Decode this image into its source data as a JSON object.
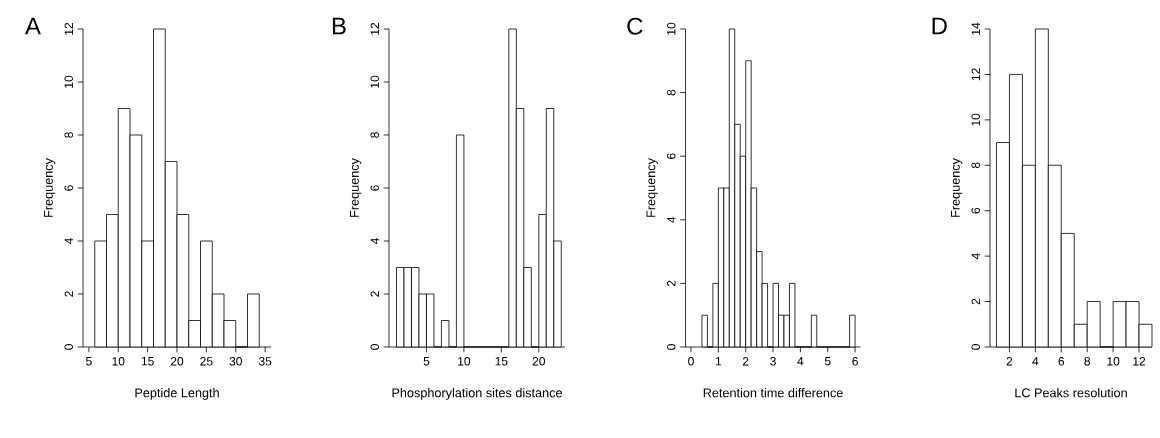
{
  "chart_data": [
    {
      "type": "histogram",
      "title": "A",
      "xlabel": "Peptide Length",
      "ylabel": "Frequency",
      "color": "#ffffff",
      "bins": [
        6,
        8,
        10,
        12,
        14,
        16,
        18,
        20,
        22,
        24,
        26,
        28,
        30,
        32,
        34
      ],
      "values": [
        4,
        5,
        9,
        8,
        4,
        12,
        7,
        5,
        1,
        4,
        2,
        1,
        0,
        2
      ],
      "xlim": [
        4,
        36
      ],
      "ylim": [
        0,
        12
      ],
      "xticks": [
        5,
        10,
        15,
        20,
        25,
        30,
        35
      ],
      "yticks": [
        0,
        2,
        4,
        6,
        8,
        10,
        12
      ]
    },
    {
      "type": "histogram",
      "title": "B",
      "xlabel": "Phosphorylation sites distance",
      "ylabel": "Frequency",
      "color": "#ffffff",
      "bins": [
        1,
        2,
        3,
        4,
        5,
        6,
        7,
        8,
        9,
        10,
        11,
        12,
        13,
        14,
        15,
        16,
        17,
        18,
        19,
        20,
        21,
        22,
        23
      ],
      "values": [
        3,
        3,
        3,
        2,
        2,
        0,
        1,
        0,
        8,
        0,
        0,
        0,
        0,
        0,
        0,
        12,
        9,
        3,
        0,
        5,
        9,
        4
      ],
      "xlim": [
        0,
        23.5
      ],
      "ylim": [
        0,
        12
      ],
      "xticks": [
        5,
        10,
        15,
        20
      ],
      "yticks": [
        0,
        2,
        4,
        6,
        8,
        10,
        12
      ]
    },
    {
      "type": "histogram",
      "title": "C",
      "xlabel": "Retention time difference",
      "ylabel": "Frequency",
      "color": "#ffffff",
      "bins": [
        0.4,
        0.6,
        0.8,
        1.0,
        1.2,
        1.4,
        1.6,
        1.8,
        2.0,
        2.2,
        2.4,
        2.6,
        2.8,
        3.0,
        3.2,
        3.4,
        3.6,
        3.8,
        4.0,
        4.2,
        4.4,
        4.6,
        4.8,
        5.0,
        5.2,
        5.4,
        5.6,
        5.8,
        6.0
      ],
      "values": [
        1,
        0,
        2,
        5,
        5,
        10,
        7,
        6,
        9,
        5,
        3,
        2,
        0,
        2,
        1,
        1,
        2,
        0,
        0,
        0,
        1,
        0,
        0,
        0,
        0,
        0,
        0,
        1
      ],
      "xlim": [
        -0.2,
        6.2
      ],
      "ylim": [
        0,
        10
      ],
      "xticks": [
        0,
        1,
        2,
        3,
        4,
        5,
        6
      ],
      "yticks": [
        0,
        2,
        4,
        6,
        8,
        10
      ]
    },
    {
      "type": "histogram",
      "title": "D",
      "xlabel": "LC Peaks resolution",
      "ylabel": "Frequency",
      "color": "#ffffff",
      "bins": [
        1,
        2,
        3,
        4,
        5,
        6,
        7,
        8,
        9,
        10,
        11,
        12,
        13
      ],
      "values": [
        9,
        12,
        8,
        14,
        8,
        5,
        1,
        2,
        0,
        2,
        2,
        1
      ],
      "xlim": [
        0.5,
        13
      ],
      "ylim": [
        0,
        14
      ],
      "xticks": [
        2,
        4,
        6,
        8,
        10,
        12
      ],
      "yticks": [
        0,
        2,
        4,
        6,
        8,
        10,
        12,
        14
      ]
    }
  ]
}
